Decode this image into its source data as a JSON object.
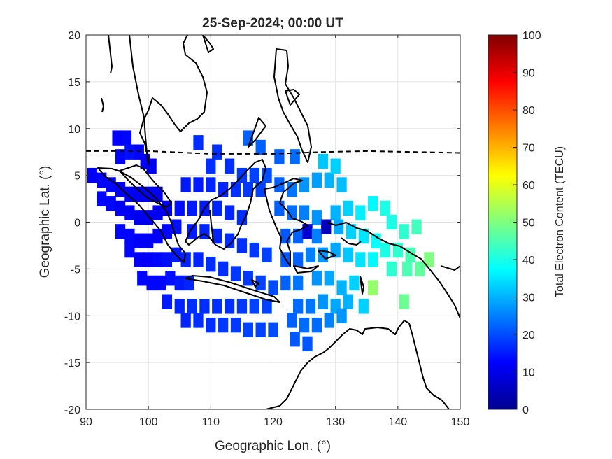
{
  "chart_data": {
    "type": "heatmap",
    "title": "25-Sep-2024; 00:00 UT",
    "xlabel": "Geographic Lon. (°)",
    "ylabel": "Geographic Lat. (°)",
    "xlim": [
      90,
      150
    ],
    "ylim": [
      -20,
      20
    ],
    "xticks": [
      90,
      100,
      110,
      120,
      130,
      140,
      150
    ],
    "yticks": [
      -20,
      -15,
      -10,
      -5,
      0,
      5,
      10,
      15,
      20
    ],
    "grid": true,
    "colorbar": {
      "label": "Total Electron Content (TECU)",
      "range": [
        0,
        100
      ],
      "ticks": [
        0,
        10,
        20,
        30,
        40,
        50,
        60,
        70,
        80,
        90,
        100
      ],
      "colormap": "jet"
    },
    "magnetic_equator": {
      "style": "dashed",
      "points": [
        [
          90,
          7.6
        ],
        [
          100,
          7.6
        ],
        [
          110,
          7.3
        ],
        [
          120,
          7.3
        ],
        [
          128,
          7.5
        ],
        [
          135,
          7.6
        ],
        [
          150,
          7.4
        ]
      ]
    },
    "tec_cells": [
      [
        95,
        9,
        12
      ],
      [
        96.5,
        9,
        13
      ],
      [
        95.5,
        7,
        13
      ],
      [
        97,
        7.5,
        14
      ],
      [
        98.5,
        7.5,
        13
      ],
      [
        99.5,
        6.5,
        12
      ],
      [
        100.5,
        6,
        11
      ],
      [
        91,
        5,
        12
      ],
      [
        92.5,
        4.5,
        13
      ],
      [
        94,
        4,
        13
      ],
      [
        95.5,
        3.5,
        12
      ],
      [
        97,
        3,
        12
      ],
      [
        98.5,
        3,
        11
      ],
      [
        100,
        3,
        11
      ],
      [
        101.5,
        3,
        11
      ],
      [
        92.5,
        2.5,
        13
      ],
      [
        94,
        2,
        13
      ],
      [
        95.5,
        1.5,
        12
      ],
      [
        97,
        1,
        12
      ],
      [
        98.5,
        0.5,
        11
      ],
      [
        100,
        0.5,
        11
      ],
      [
        101.5,
        1,
        11
      ],
      [
        103,
        1.5,
        12
      ],
      [
        95.5,
        -1,
        13
      ],
      [
        97,
        -1.5,
        13
      ],
      [
        98.5,
        -2,
        12
      ],
      [
        100,
        -2,
        12
      ],
      [
        101.5,
        -1.5,
        12
      ],
      [
        103,
        -1,
        13
      ],
      [
        104.5,
        -0.5,
        14
      ],
      [
        97,
        -3,
        13
      ],
      [
        98.5,
        -4,
        12
      ],
      [
        100,
        -4,
        12
      ],
      [
        101.5,
        -4,
        13
      ],
      [
        103,
        -4,
        14
      ],
      [
        104.5,
        -3.5,
        15
      ],
      [
        99,
        -6,
        13
      ],
      [
        100.5,
        -6.5,
        13
      ],
      [
        102,
        -6.5,
        13
      ],
      [
        103.5,
        -6,
        14
      ],
      [
        105,
        -6.5,
        15
      ],
      [
        106.5,
        -6.5,
        16
      ],
      [
        103,
        -8.5,
        15
      ],
      [
        105,
        -9,
        16
      ],
      [
        107,
        -9,
        17
      ],
      [
        109,
        -9,
        17
      ],
      [
        111,
        -9,
        17
      ],
      [
        113,
        -9,
        17
      ],
      [
        115,
        -9,
        18
      ],
      [
        117,
        -9,
        19
      ],
      [
        119,
        -9,
        19
      ],
      [
        106,
        -10.5,
        16
      ],
      [
        108,
        -10.5,
        17
      ],
      [
        110,
        -11,
        17
      ],
      [
        112,
        -11,
        18
      ],
      [
        114,
        -11,
        18
      ],
      [
        116,
        -11.5,
        19
      ],
      [
        118,
        -11.5,
        19
      ],
      [
        120,
        -11.5,
        20
      ],
      [
        106,
        -4,
        16
      ],
      [
        108,
        -4,
        16
      ],
      [
        110,
        -4.5,
        17
      ],
      [
        112,
        -5,
        17
      ],
      [
        114,
        -5.5,
        18
      ],
      [
        116,
        -6,
        18
      ],
      [
        118,
        -6.5,
        19
      ],
      [
        120,
        -7,
        20
      ],
      [
        107,
        -1,
        15
      ],
      [
        109,
        -1,
        16
      ],
      [
        111,
        -1.5,
        16
      ],
      [
        113,
        -2,
        17
      ],
      [
        115,
        -2.5,
        17
      ],
      [
        117,
        -3,
        18
      ],
      [
        119,
        -3.5,
        19
      ],
      [
        105,
        1.5,
        14
      ],
      [
        107,
        1.5,
        15
      ],
      [
        109,
        1.5,
        15
      ],
      [
        111,
        1.5,
        16
      ],
      [
        113,
        1,
        16
      ],
      [
        115,
        0.5,
        17
      ],
      [
        106,
        4,
        15
      ],
      [
        108,
        4,
        15
      ],
      [
        110,
        4,
        16
      ],
      [
        112,
        3.5,
        16
      ],
      [
        114,
        3.5,
        17
      ],
      [
        116,
        3.5,
        18
      ],
      [
        118,
        3.5,
        19
      ],
      [
        110,
        6,
        17
      ],
      [
        113,
        6,
        17
      ],
      [
        115,
        5,
        18
      ],
      [
        117,
        5,
        19
      ],
      [
        119,
        5,
        20
      ],
      [
        108,
        8.5,
        17
      ],
      [
        111,
        7.5,
        17
      ],
      [
        116,
        9,
        22
      ],
      [
        118,
        8,
        22
      ],
      [
        121,
        7,
        22
      ],
      [
        123.5,
        7,
        23
      ],
      [
        121,
        4,
        22
      ],
      [
        123,
        3.5,
        24
      ],
      [
        125,
        4,
        27
      ],
      [
        127,
        4.5,
        28
      ],
      [
        129,
        4.5,
        30
      ],
      [
        131,
        4,
        31
      ],
      [
        121,
        1.5,
        22
      ],
      [
        123,
        1,
        23
      ],
      [
        125,
        1,
        25
      ],
      [
        127,
        0.5,
        27
      ],
      [
        130,
        1,
        30
      ],
      [
        132,
        1.5,
        33
      ],
      [
        134,
        1,
        36
      ],
      [
        136,
        2,
        37
      ],
      [
        138,
        1.5,
        40
      ],
      [
        122,
        -1.5,
        21
      ],
      [
        124,
        -1.5,
        22
      ],
      [
        125.5,
        -1,
        8
      ],
      [
        127,
        -1.5,
        25
      ],
      [
        128.5,
        -0.5,
        6
      ],
      [
        130.5,
        -0.5,
        29
      ],
      [
        132.5,
        -1,
        33
      ],
      [
        134.5,
        -1.5,
        35
      ],
      [
        136.5,
        -2,
        38
      ],
      [
        139,
        0,
        40
      ],
      [
        141,
        -1,
        42
      ],
      [
        143,
        -0.5,
        44
      ],
      [
        122,
        -4,
        21
      ],
      [
        124,
        -4,
        22
      ],
      [
        126,
        -3.5,
        25
      ],
      [
        128,
        -3.5,
        27
      ],
      [
        130,
        -3,
        29
      ],
      [
        132,
        -3.5,
        32
      ],
      [
        134,
        -4,
        35
      ],
      [
        136,
        -4,
        37
      ],
      [
        138,
        -3,
        40
      ],
      [
        140,
        -3,
        42
      ],
      [
        142,
        -3.5,
        45
      ],
      [
        145,
        -4,
        50
      ],
      [
        122,
        -6.5,
        22
      ],
      [
        124,
        -6.5,
        24
      ],
      [
        127,
        -6,
        27
      ],
      [
        129,
        -6,
        29
      ],
      [
        131,
        -7,
        30
      ],
      [
        133,
        -6.5,
        33
      ],
      [
        136,
        -7,
        52
      ],
      [
        139,
        -5,
        42
      ],
      [
        141.5,
        -5,
        45
      ],
      [
        143.5,
        -5,
        47
      ],
      [
        124,
        -9,
        23
      ],
      [
        126,
        -9,
        24
      ],
      [
        128,
        -8.5,
        27
      ],
      [
        130,
        -9,
        29
      ],
      [
        132,
        -8.5,
        30
      ],
      [
        134.5,
        -9,
        33
      ],
      [
        141,
        -8.5,
        48
      ],
      [
        123,
        -10.5,
        22
      ],
      [
        125,
        -11,
        23
      ],
      [
        127,
        -11,
        23
      ],
      [
        129,
        -10.5,
        25
      ],
      [
        131,
        -10,
        27
      ],
      [
        123.5,
        -12.5,
        21
      ],
      [
        125.5,
        -13,
        21
      ],
      [
        128,
        6.5,
        32
      ],
      [
        130,
        6,
        33
      ]
    ]
  }
}
